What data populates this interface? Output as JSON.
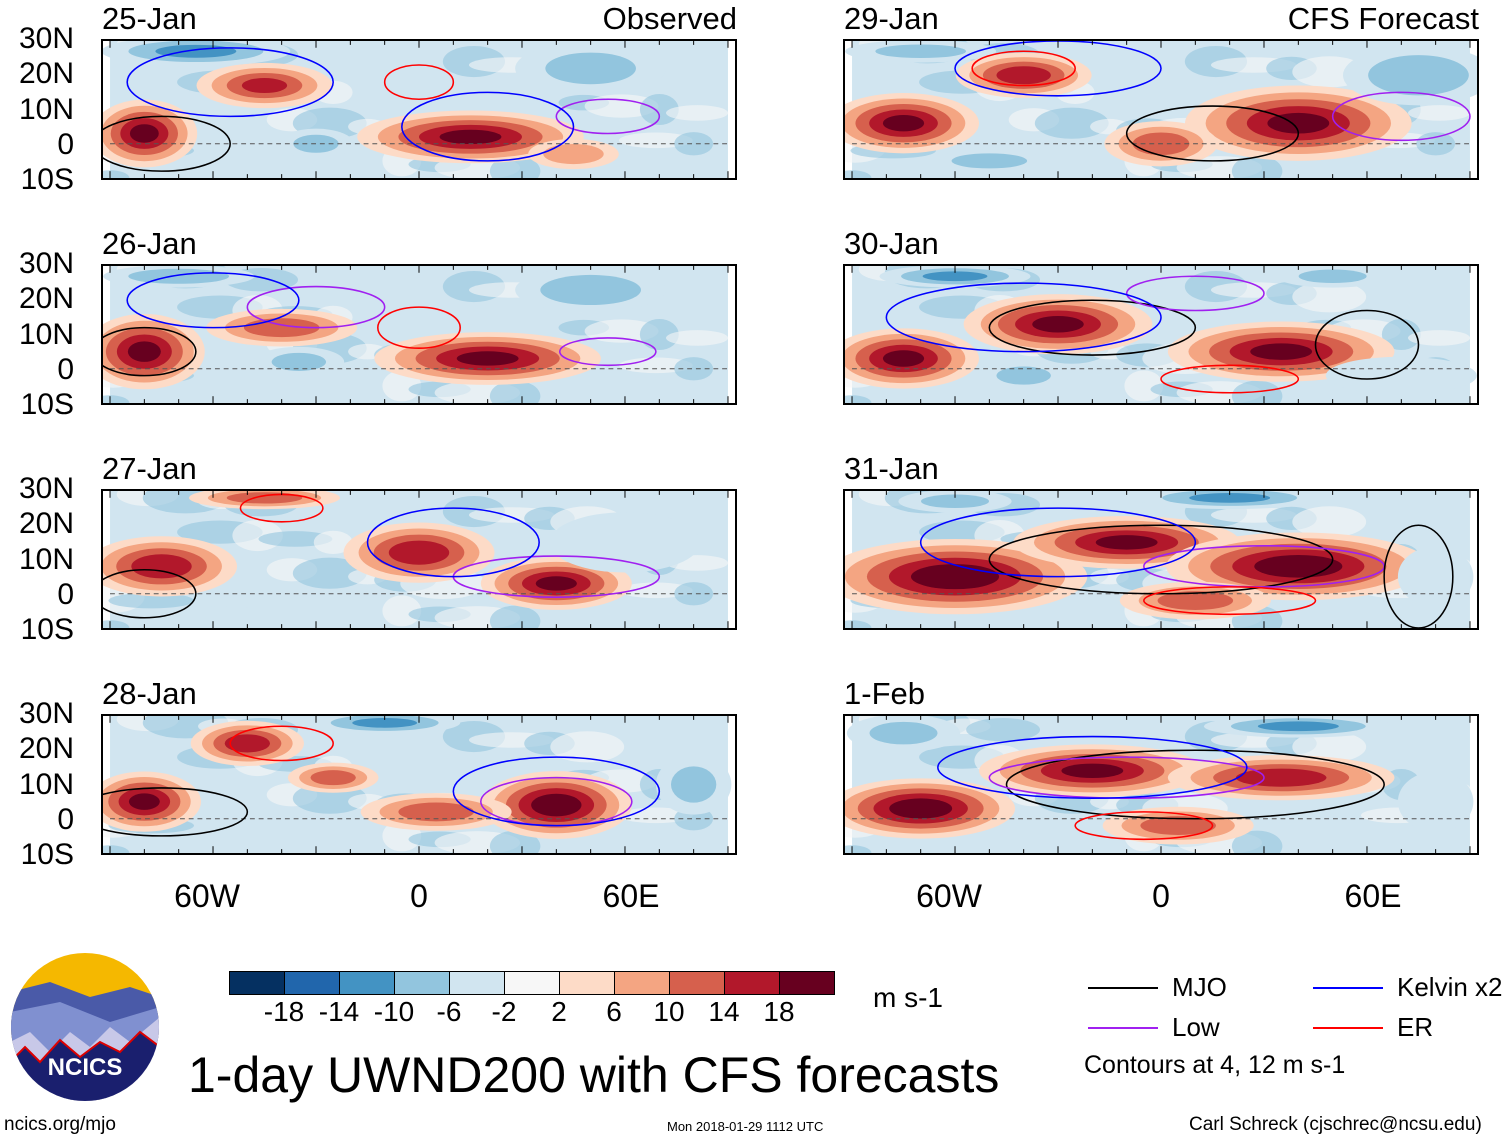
{
  "column_titles": [
    "Observed",
    "CFS Forecast"
  ],
  "lat_labels": [
    "30N",
    "20N",
    "10N",
    "0",
    "10S"
  ],
  "lon_labels": [
    "60W",
    "0",
    "60E"
  ],
  "chart_data": {
    "type": "heatmap",
    "title": "1-day UWND200 with CFS forecasts",
    "units": "m s-1",
    "xlim": [
      -90,
      90
    ],
    "ylim": [
      -10,
      30
    ],
    "levels": [
      "-18",
      "-14",
      "-10",
      "-6",
      "-2",
      "2",
      "6",
      "10",
      "14",
      "18"
    ],
    "level_colors": [
      "#053061",
      "#2166ac",
      "#4393c3",
      "#92c5de",
      "#d1e5f0",
      "#f7f7f7",
      "#fddbc7",
      "#f4a582",
      "#d6604d",
      "#b2182b",
      "#67001f"
    ],
    "panels": [
      {
        "date": "25-Jan",
        "col": 0,
        "features": [
          [
            -80,
            3,
            14,
            9,
            20
          ],
          [
            -45,
            17,
            18,
            6,
            16
          ],
          [
            15,
            2,
            30,
            7,
            20
          ],
          [
            -65,
            27,
            25,
            4,
            -12
          ],
          [
            50,
            22,
            20,
            7,
            -8
          ],
          [
            -30,
            0,
            10,
            4,
            -8
          ],
          [
            45,
            -3,
            12,
            4,
            10
          ]
        ],
        "contours": [
          [
            "MJO",
            -75,
            0,
            20,
            8
          ],
          [
            "Kelvin",
            -55,
            18,
            30,
            10
          ],
          [
            "Low",
            55,
            8,
            15,
            5
          ],
          [
            "ER",
            0,
            18,
            10,
            5
          ],
          [
            "Kelvin",
            20,
            5,
            25,
            10
          ]
        ]
      },
      {
        "date": "26-Jan",
        "col": 0,
        "features": [
          [
            -80,
            5,
            16,
            10,
            20
          ],
          [
            -40,
            12,
            20,
            5,
            14
          ],
          [
            20,
            3,
            30,
            7,
            20
          ],
          [
            50,
            23,
            20,
            6,
            -10
          ],
          [
            -35,
            2,
            12,
            4,
            -8
          ],
          [
            -70,
            27,
            20,
            3,
            -10
          ]
        ],
        "contours": [
          [
            "MJO",
            -80,
            5,
            15,
            7
          ],
          [
            "Low",
            -30,
            18,
            20,
            6
          ],
          [
            "Low",
            55,
            5,
            14,
            4
          ],
          [
            "ER",
            0,
            12,
            12,
            6
          ],
          [
            "Kelvin",
            -60,
            20,
            25,
            8
          ]
        ]
      },
      {
        "date": "27-Jan",
        "col": 0,
        "features": [
          [
            -75,
            8,
            20,
            8,
            18
          ],
          [
            0,
            12,
            20,
            8,
            18
          ],
          [
            40,
            3,
            20,
            7,
            20
          ],
          [
            -45,
            28,
            20,
            3,
            14
          ],
          [
            -60,
            -7,
            20,
            3,
            -6
          ],
          [
            60,
            15,
            20,
            8,
            -6
          ]
        ],
        "contours": [
          [
            "MJO",
            -80,
            0,
            15,
            7
          ],
          [
            "Low",
            40,
            5,
            30,
            6
          ],
          [
            "ER",
            -40,
            25,
            12,
            4
          ],
          [
            "Kelvin",
            10,
            15,
            25,
            10
          ]
        ]
      },
      {
        "date": "28-Jan",
        "col": 0,
        "features": [
          [
            -80,
            5,
            15,
            8,
            20
          ],
          [
            -50,
            22,
            15,
            6,
            18
          ],
          [
            -25,
            12,
            12,
            4,
            14
          ],
          [
            40,
            4,
            20,
            9,
            22
          ],
          [
            5,
            2,
            20,
            5,
            14
          ],
          [
            -10,
            28,
            20,
            3,
            -12
          ],
          [
            80,
            10,
            10,
            8,
            -8
          ]
        ],
        "contours": [
          [
            "MJO",
            -75,
            2,
            25,
            7
          ],
          [
            "Low",
            40,
            5,
            22,
            7
          ],
          [
            "ER",
            -40,
            22,
            15,
            5
          ],
          [
            "Kelvin",
            40,
            8,
            30,
            10
          ]
        ]
      },
      {
        "date": "29-Jan",
        "col": 1,
        "features": [
          [
            -75,
            6,
            20,
            8,
            20
          ],
          [
            -40,
            20,
            18,
            6,
            18
          ],
          [
            40,
            6,
            30,
            10,
            20
          ],
          [
            0,
            0,
            15,
            6,
            14
          ],
          [
            -50,
            -5,
            15,
            3,
            -10
          ],
          [
            75,
            20,
            20,
            8,
            -10
          ],
          [
            -70,
            27,
            20,
            3,
            -8
          ]
        ],
        "contours": [
          [
            "MJO",
            15,
            3,
            25,
            8
          ],
          [
            "Low",
            70,
            8,
            20,
            7
          ],
          [
            "ER",
            -40,
            22,
            15,
            5
          ],
          [
            "Kelvin",
            -30,
            22,
            30,
            8
          ]
        ]
      },
      {
        "date": "30-Jan",
        "col": 1,
        "features": [
          [
            -75,
            3,
            20,
            8,
            20
          ],
          [
            -30,
            13,
            25,
            8,
            20
          ],
          [
            35,
            5,
            30,
            8,
            20
          ],
          [
            -40,
            -2,
            12,
            4,
            -8
          ],
          [
            70,
            -2,
            20,
            5,
            -6
          ],
          [
            -60,
            27,
            20,
            3,
            -12
          ],
          [
            50,
            27,
            15,
            3,
            -8
          ]
        ],
        "contours": [
          [
            "MJO",
            -20,
            12,
            30,
            8
          ],
          [
            "MJO",
            60,
            7,
            15,
            10
          ],
          [
            "Low",
            10,
            22,
            20,
            5
          ],
          [
            "Kelvin",
            -40,
            15,
            40,
            10
          ],
          [
            "ER",
            20,
            -3,
            20,
            4
          ]
        ]
      },
      {
        "date": "31-Jan",
        "col": 1,
        "features": [
          [
            -60,
            5,
            35,
            10,
            22
          ],
          [
            -10,
            15,
            30,
            7,
            20
          ],
          [
            40,
            8,
            35,
            9,
            22
          ],
          [
            10,
            -2,
            20,
            5,
            14
          ],
          [
            -60,
            27,
            15,
            3,
            -8
          ],
          [
            20,
            28,
            25,
            3,
            -12
          ],
          [
            80,
            5,
            10,
            8,
            -6
          ]
        ],
        "contours": [
          [
            "MJO",
            0,
            10,
            50,
            10
          ],
          [
            "Low",
            30,
            8,
            35,
            6
          ],
          [
            "ER",
            20,
            -2,
            25,
            4
          ],
          [
            "Kelvin",
            -30,
            15,
            40,
            10
          ],
          [
            "MJO",
            75,
            5,
            10,
            15
          ]
        ]
      },
      {
        "date": "1-Feb",
        "col": 1,
        "features": [
          [
            -70,
            3,
            25,
            8,
            22
          ],
          [
            -20,
            14,
            30,
            7,
            20
          ],
          [
            35,
            12,
            30,
            6,
            18
          ],
          [
            5,
            -2,
            20,
            5,
            14
          ],
          [
            -75,
            25,
            15,
            5,
            -8
          ],
          [
            40,
            27,
            25,
            3,
            -12
          ],
          [
            80,
            5,
            10,
            8,
            -6
          ]
        ],
        "contours": [
          [
            "MJO",
            10,
            10,
            55,
            10
          ],
          [
            "Low",
            -10,
            12,
            40,
            6
          ],
          [
            "ER",
            -5,
            -2,
            20,
            4
          ],
          [
            "Kelvin",
            -20,
            15,
            45,
            9
          ]
        ]
      }
    ]
  },
  "colorbar_units": "m s-1",
  "legend": {
    "mjo": "MJO",
    "kelvin": "Kelvin x2",
    "low": "Low",
    "er": "ER",
    "note": "Contours at 4, 12 m s-1",
    "colors": {
      "MJO": "#000000",
      "Kelvin": "#0000ff",
      "Low": "#a020f0",
      "ER": "#ff0000"
    }
  },
  "footer": {
    "url": "ncics.org/mjo",
    "timestamp": "Mon 2018-01-29 1112 UTC",
    "credit": "Carl Schreck (cjschrec@ncsu.edu)",
    "logo_text": "NCICS"
  }
}
